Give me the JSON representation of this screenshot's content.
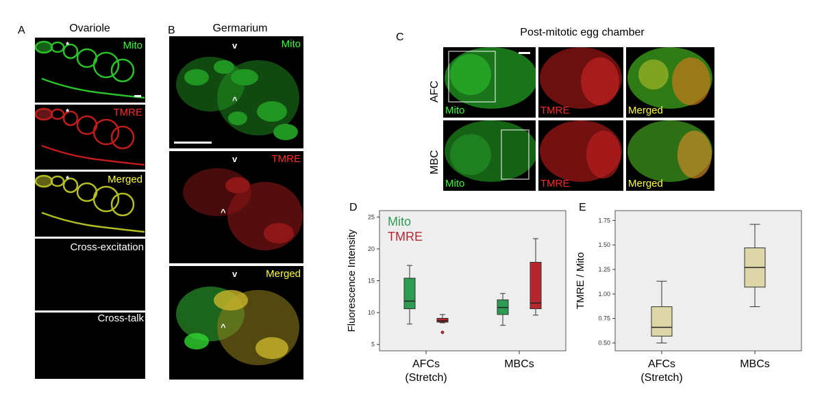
{
  "panels": {
    "A": {
      "letter": "A",
      "title": "Ovariole",
      "labels": [
        "Mito",
        "TMRE",
        "Merged",
        "Cross-excitation",
        "Cross-talk"
      ],
      "star": "*"
    },
    "B": {
      "letter": "B",
      "title": "Germarium",
      "labels": [
        "Mito",
        "TMRE",
        "Merged"
      ],
      "marks": [
        "v",
        "^"
      ]
    },
    "C": {
      "letter": "C",
      "title": "Post-mitotic egg chamber",
      "rows": [
        "AFC",
        "MBC"
      ],
      "labels": [
        "Mito",
        "TMRE",
        "Merged"
      ]
    },
    "D": {
      "letter": "D"
    },
    "E": {
      "letter": "E"
    }
  },
  "colors": {
    "mito": "#2e9b52",
    "tmre": "#b5262e",
    "ratio": "#ddd6a8",
    "plot_bg": "#eeeeee"
  },
  "chart_data": [
    {
      "type": "box",
      "ylabel": "Fluorescence Intensity",
      "ylim": [
        4,
        26
      ],
      "yticks": [
        5,
        10,
        15,
        20,
        25
      ],
      "categories": [
        "AFCs\n(Stretch)",
        "MBCs"
      ],
      "category_lines": [
        [
          "AFCs",
          "(Stretch)"
        ],
        [
          "MBCs"
        ]
      ],
      "legend": [
        {
          "label": "Mito",
          "color": "#2e9b52"
        },
        {
          "label": "TMRE",
          "color": "#b5262e"
        }
      ],
      "series": [
        {
          "name": "Mito",
          "color": "#2e9b52",
          "boxes": [
            {
              "category": "AFCs (Stretch)",
              "min": 8.2,
              "q1": 10.6,
              "median": 11.8,
              "q3": 15.4,
              "max": 17.4
            },
            {
              "category": "MBCs",
              "min": 8.0,
              "q1": 9.7,
              "median": 10.8,
              "q3": 12.0,
              "max": 13.0
            }
          ]
        },
        {
          "name": "TMRE",
          "color": "#b5262e",
          "boxes": [
            {
              "category": "AFCs (Stretch)",
              "min": 8.4,
              "q1": 8.5,
              "median": 8.7,
              "q3": 9.1,
              "max": 9.7,
              "outliers": [
                6.9
              ]
            },
            {
              "category": "MBCs",
              "min": 9.6,
              "q1": 10.6,
              "median": 11.5,
              "q3": 17.9,
              "max": 21.6
            }
          ]
        }
      ]
    },
    {
      "type": "box",
      "ylabel": "TMRE / Mito",
      "ylim": [
        0.42,
        1.85
      ],
      "yticks": [
        0.5,
        0.75,
        1.0,
        1.25,
        1.5,
        1.75
      ],
      "ytick_labels": [
        "0.50",
        "0.75",
        "1.00",
        "1.25",
        "1.50",
        "1.75"
      ],
      "categories": [
        "AFCs\n(Stretch)",
        "MBCs"
      ],
      "category_lines": [
        [
          "AFCs",
          "(Stretch)"
        ],
        [
          "MBCs"
        ]
      ],
      "series": [
        {
          "name": "",
          "color": "#ddd6a8",
          "boxes": [
            {
              "category": "AFCs (Stretch)",
              "min": 0.5,
              "q1": 0.57,
              "median": 0.66,
              "q3": 0.87,
              "max": 1.13
            },
            {
              "category": "MBCs",
              "min": 0.87,
              "q1": 1.07,
              "median": 1.27,
              "q3": 1.47,
              "max": 1.71
            }
          ]
        }
      ]
    }
  ]
}
